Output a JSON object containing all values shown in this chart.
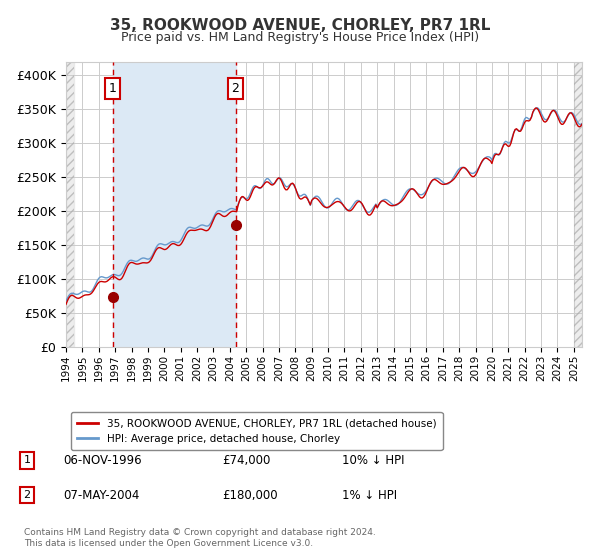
{
  "title": "35, ROOKWOOD AVENUE, CHORLEY, PR7 1RL",
  "subtitle": "Price paid vs. HM Land Registry's House Price Index (HPI)",
  "legend_line1": "35, ROOKWOOD AVENUE, CHORLEY, PR7 1RL (detached house)",
  "legend_line2": "HPI: Average price, detached house, Chorley",
  "annotation1_date": "06-NOV-1996",
  "annotation1_price": 74000,
  "annotation1_note": "10% ↓ HPI",
  "annotation1_year": 1996.85,
  "annotation2_date": "07-MAY-2004",
  "annotation2_price": 180000,
  "annotation2_note": "1% ↓ HPI",
  "annotation2_year": 2004.35,
  "hpi_color": "#6699cc",
  "price_color": "#cc0000",
  "bg_highlight_color": "#dce9f5",
  "marker_color": "#990000",
  "grid_color": "#cccccc",
  "footer": "Contains HM Land Registry data © Crown copyright and database right 2024.\nThis data is licensed under the Open Government Licence v3.0.",
  "xmin": 1994.0,
  "xmax": 2025.5,
  "ymin": 0,
  "ymax": 420000
}
